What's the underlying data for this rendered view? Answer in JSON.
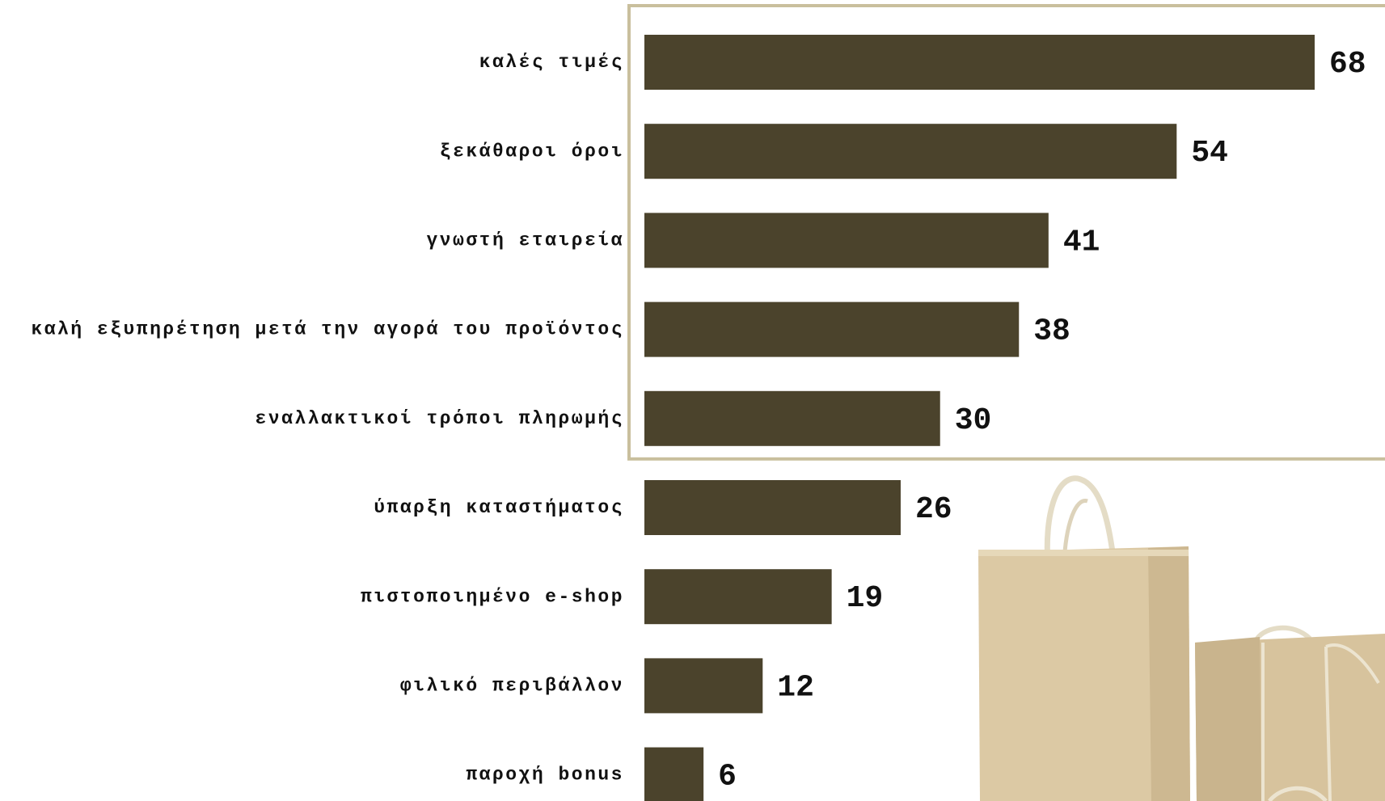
{
  "chart_data": {
    "type": "bar",
    "orientation": "horizontal",
    "categories": [
      "καλές τιμές",
      "ξεκάθαροι όροι",
      "γνωστή εταιρεία",
      "καλή εξυπηρέτηση μετά την αγορά του προϊόντος",
      "εναλλακτικοί τρόποι πληρωμής",
      "ύπαρξη καταστήματος",
      "πιστοποιημένο e-shop",
      "φιλικό περιβάλλον",
      "παροχή bonus"
    ],
    "values": [
      68,
      54,
      41,
      38,
      30,
      26,
      19,
      12,
      6
    ],
    "data_labels": [
      "68",
      "54",
      "41",
      "38",
      "30",
      "26",
      "19",
      "12",
      "6"
    ],
    "highlight_top_n": 5,
    "xlim": [
      0,
      68
    ],
    "grid": false,
    "legend": "none"
  },
  "colors": {
    "bar": "#4b432c",
    "highlight_frame": "#c9bf9d",
    "bag_main": "#dcc9a4",
    "bag_shadow": "#c7b28b",
    "bag_handle": "#e4dcc6"
  },
  "decoration": {
    "image_icon": "shopping-bags-illustration"
  }
}
